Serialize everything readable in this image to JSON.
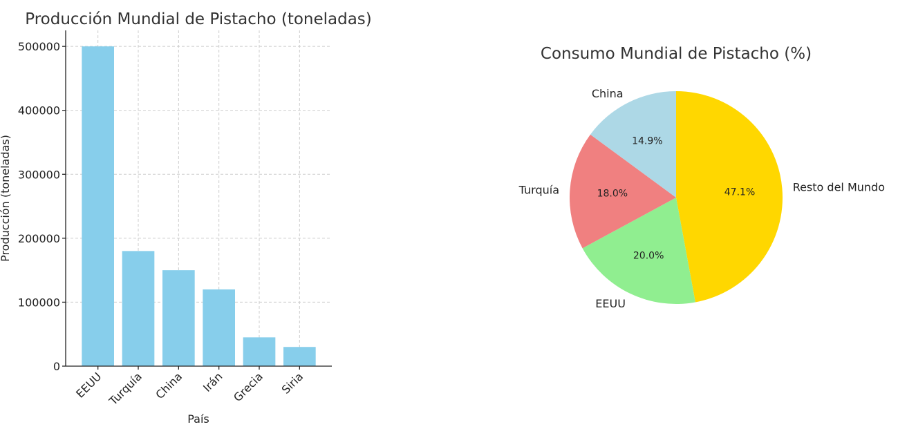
{
  "chart_data": [
    {
      "type": "bar",
      "title": "Producción Mundial de Pistacho (toneladas)",
      "xlabel": "País",
      "ylabel": "Producción (toneladas)",
      "categories": [
        "EEUU",
        "Turquía",
        "China",
        "Irán",
        "Grecia",
        "Siria"
      ],
      "values": [
        500000,
        180000,
        150000,
        120000,
        45000,
        30000
      ],
      "ylim": [
        0,
        525000
      ],
      "yticks": [
        0,
        100000,
        200000,
        300000,
        400000,
        500000
      ],
      "grid": true,
      "color": "#87CEEB"
    },
    {
      "type": "pie",
      "title": "Consumo Mundial de Pistacho (%)",
      "labels": [
        "Resto del Mundo",
        "EEUU",
        "Turquía",
        "China"
      ],
      "percentages": [
        "47.1%",
        "20.0%",
        "18.0%",
        "14.9%"
      ],
      "values": [
        47.1,
        20.0,
        18.0,
        14.9
      ],
      "colors": [
        "#FFD700",
        "#90EE90",
        "#F08080",
        "#ADD8E6"
      ]
    }
  ]
}
